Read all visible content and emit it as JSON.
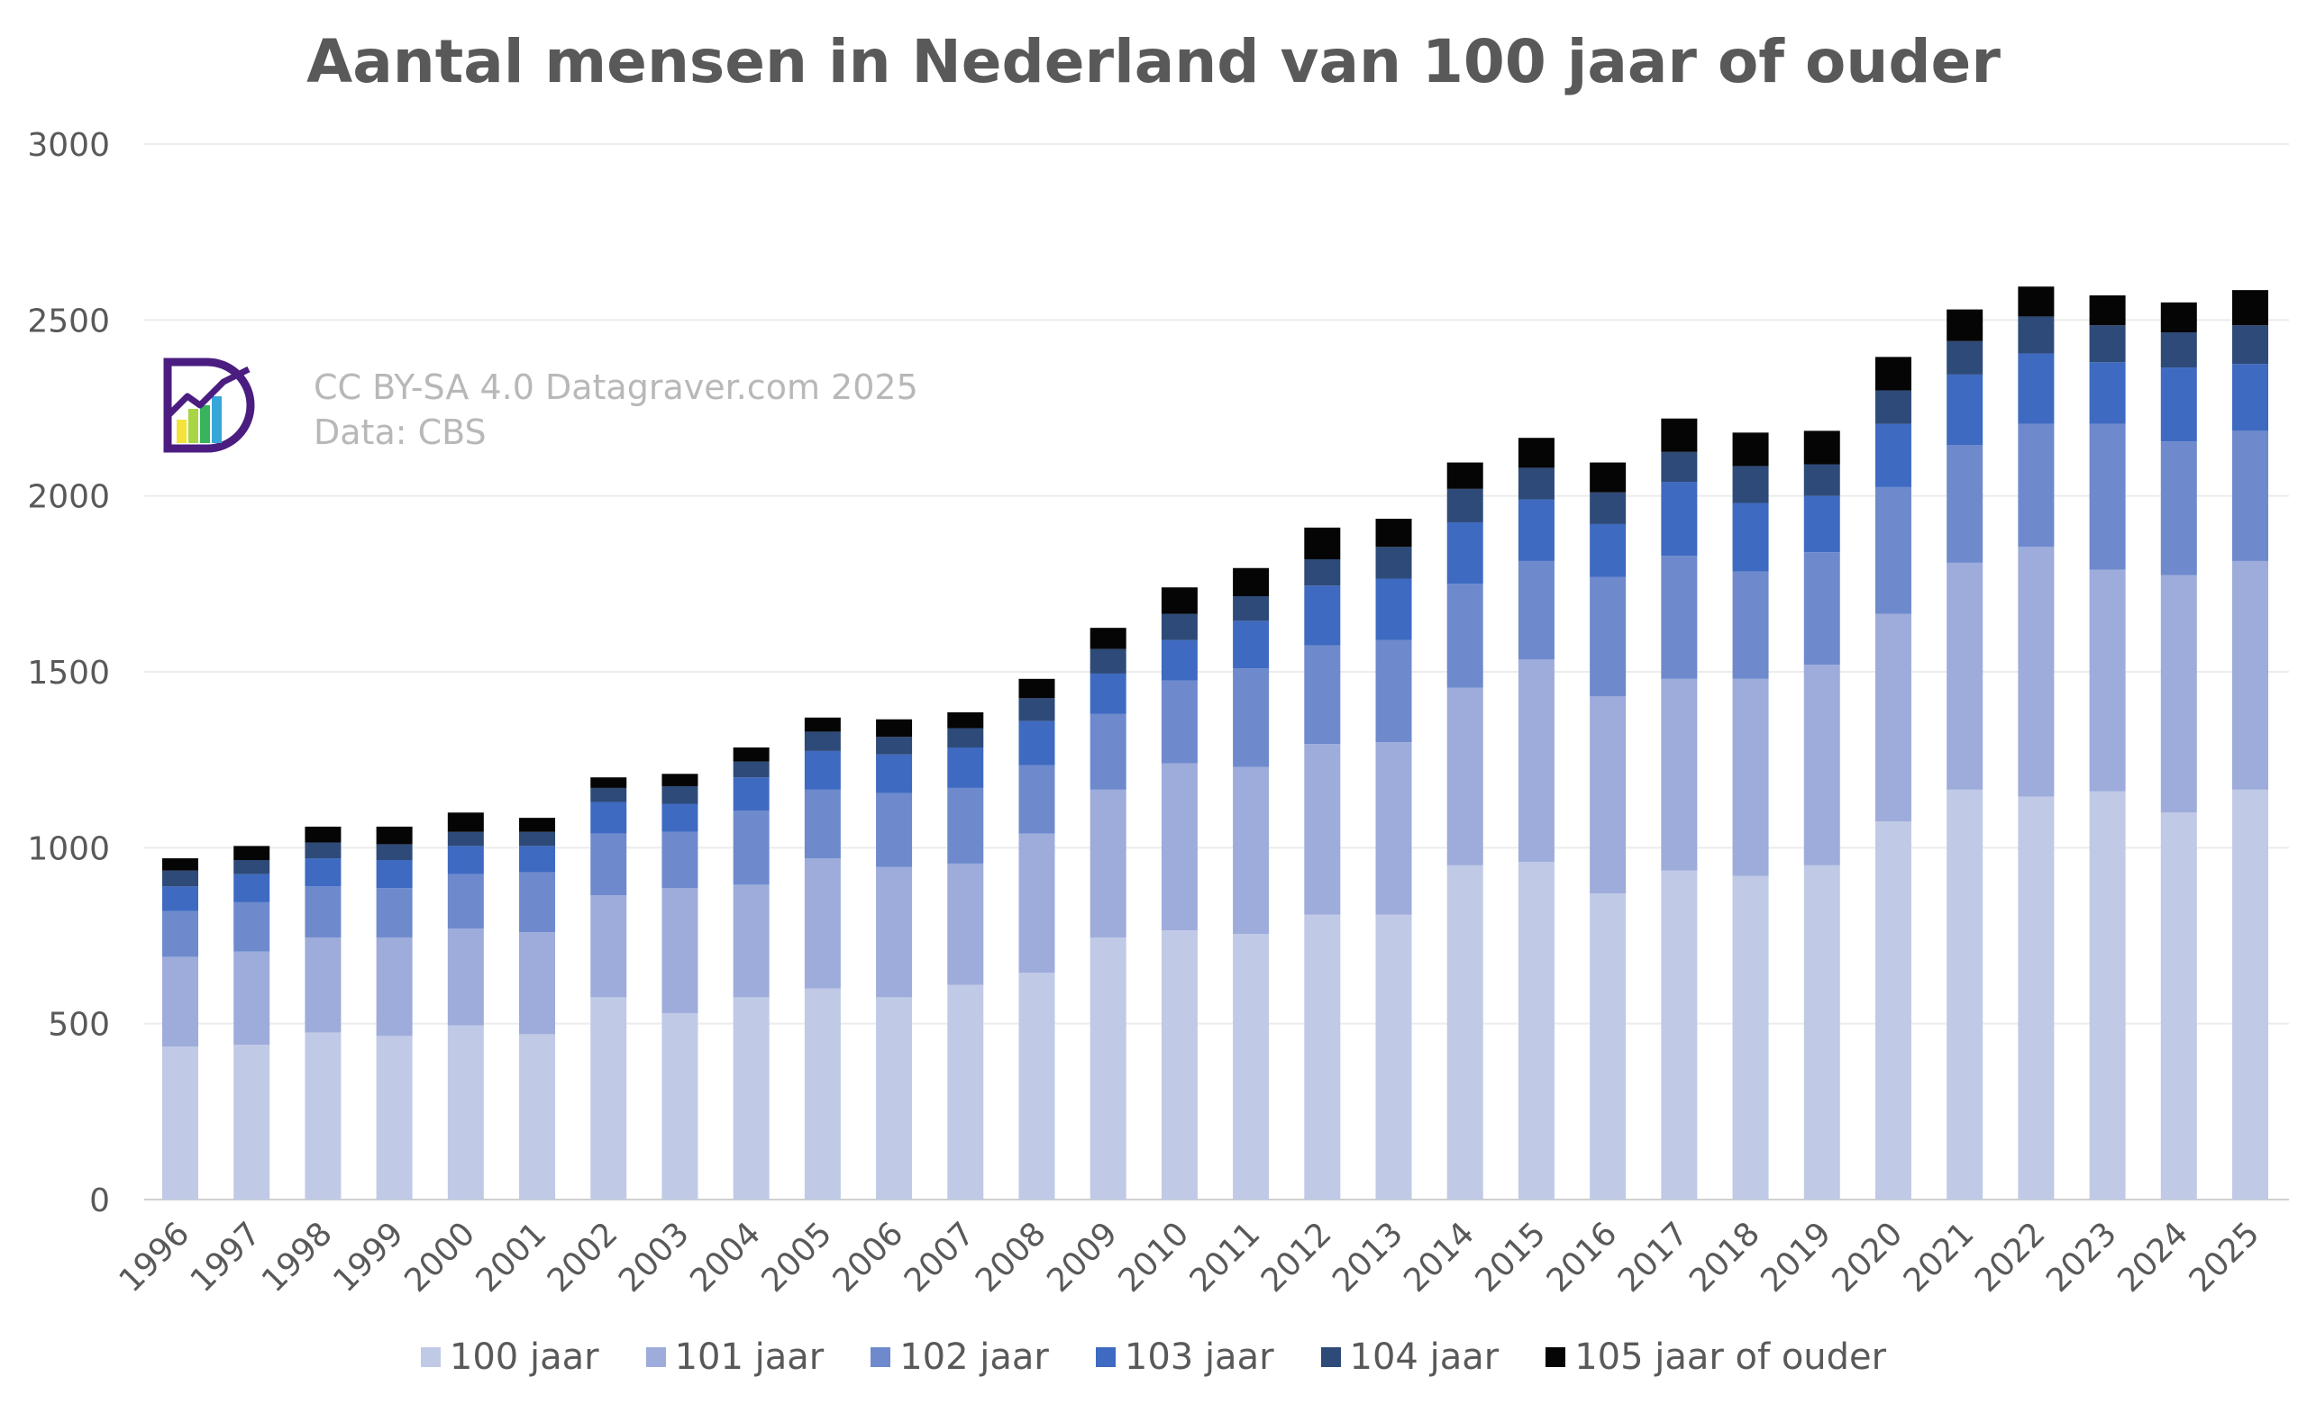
{
  "chart_data": {
    "type": "bar",
    "stacked": true,
    "title": "Aantal mensen in Nederland van 100 jaar of ouder",
    "credit_lines": [
      "CC BY-SA 4.0 Datagraver.com 2025",
      "Data: CBS"
    ],
    "ylim": [
      0,
      3000
    ],
    "yticks": [
      0,
      500,
      1000,
      1500,
      2000,
      2500,
      3000
    ],
    "grid": true,
    "legend_position": "bottom",
    "categories": [
      "1996",
      "1997",
      "1998",
      "1999",
      "2000",
      "2001",
      "2002",
      "2003",
      "2004",
      "2005",
      "2006",
      "2007",
      "2008",
      "2009",
      "2010",
      "2011",
      "2012",
      "2013",
      "2014",
      "2015",
      "2016",
      "2017",
      "2018",
      "2019",
      "2020",
      "2021",
      "2022",
      "2023",
      "2024",
      "2025"
    ],
    "series": [
      {
        "name": "100 jaar",
        "color": "#c0cae6",
        "values": [
          435,
          440,
          475,
          465,
          495,
          470,
          575,
          530,
          575,
          600,
          575,
          610,
          645,
          745,
          765,
          755,
          810,
          810,
          950,
          960,
          870,
          935,
          920,
          950,
          1075,
          1165,
          1145,
          1160,
          1100,
          1165
        ]
      },
      {
        "name": "101 jaar",
        "color": "#9eacdb",
        "values": [
          255,
          265,
          270,
          280,
          275,
          290,
          290,
          355,
          320,
          370,
          370,
          345,
          395,
          420,
          475,
          475,
          485,
          490,
          505,
          575,
          560,
          545,
          560,
          570,
          590,
          645,
          710,
          630,
          675,
          650
        ]
      },
      {
        "name": "102 jaar",
        "color": "#6e8acd",
        "values": [
          130,
          140,
          145,
          140,
          155,
          170,
          175,
          160,
          210,
          195,
          210,
          215,
          195,
          215,
          235,
          280,
          280,
          290,
          295,
          280,
          340,
          350,
          305,
          320,
          360,
          335,
          350,
          415,
          380,
          370
        ]
      },
      {
        "name": "103 jaar",
        "color": "#3e6ac1",
        "values": [
          70,
          80,
          80,
          80,
          80,
          75,
          90,
          80,
          95,
          110,
          110,
          115,
          125,
          115,
          115,
          135,
          170,
          175,
          175,
          175,
          150,
          210,
          195,
          160,
          180,
          200,
          200,
          175,
          210,
          190
        ]
      },
      {
        "name": "104 jaar",
        "color": "#2e4a78",
        "values": [
          45,
          40,
          45,
          45,
          40,
          40,
          40,
          50,
          45,
          55,
          50,
          55,
          65,
          70,
          75,
          70,
          75,
          90,
          95,
          90,
          90,
          85,
          105,
          90,
          95,
          95,
          105,
          105,
          100,
          110
        ]
      },
      {
        "name": "105 jaar of ouder",
        "color": "#050505",
        "values": [
          35,
          40,
          45,
          50,
          55,
          40,
          30,
          35,
          40,
          40,
          50,
          45,
          55,
          60,
          75,
          80,
          90,
          80,
          75,
          85,
          85,
          95,
          95,
          95,
          95,
          90,
          85,
          85,
          85,
          100
        ]
      }
    ]
  }
}
